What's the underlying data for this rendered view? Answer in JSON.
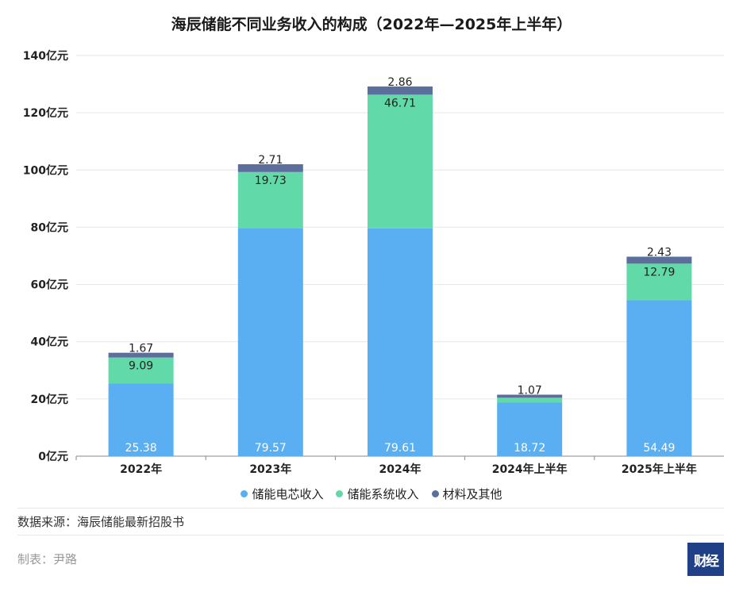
{
  "title": "海辰储能不同业务收入的构成（2022年—2025年上半年）",
  "source": "数据来源：海辰储能最新招股书",
  "maker": "制表：尹路",
  "logo_text": "财经",
  "colors": {
    "series1": "#5aaef2",
    "series2": "#62d9a8",
    "series3": "#5b6e9c",
    "grid": "#e6e6e6",
    "axis": "#888888"
  },
  "chart_data": {
    "type": "bar",
    "stacked": true,
    "categories": [
      "2022年",
      "2023年",
      "2024年",
      "2024年上半年",
      "2025年上半年"
    ],
    "series": [
      {
        "name": "储能电芯收入",
        "values": [
          25.38,
          79.57,
          79.61,
          18.72,
          54.49
        ]
      },
      {
        "name": "储能系统收入",
        "values": [
          9.09,
          19.73,
          46.71,
          null,
          12.79
        ]
      },
      {
        "name": "材料及其他",
        "values": [
          1.67,
          2.71,
          2.86,
          1.07,
          2.43
        ]
      }
    ],
    "unlabeled_segments": [
      {
        "category": "2024年上半年",
        "series": "储能系统收入",
        "value": 1.7
      }
    ],
    "ylim": [
      0,
      140
    ],
    "y_ticks": [
      "0亿元",
      "20亿元",
      "40亿元",
      "60亿元",
      "80亿元",
      "100亿元",
      "120亿元",
      "140亿元"
    ],
    "grid": true,
    "legend_position": "bottom"
  }
}
